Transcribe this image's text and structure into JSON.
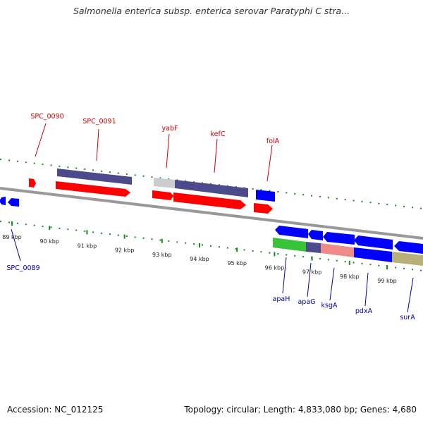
{
  "title": "Salmonella enterica subsp. enterica serovar Paratyphi C stra...",
  "footer": {
    "accession": "Accession: NC_012125",
    "info": "Topology: circular; Length: 4,833,080 bp; Genes: 4,680"
  },
  "ticks": [
    "89 kbp",
    "90 kbp",
    "91 kbp",
    "92 kbp",
    "93 kbp",
    "94 kbp",
    "95 kbp",
    "96 kbp",
    "97 kbp",
    "98 kbp",
    "99 kbp"
  ],
  "genes_top": [
    "SPC_0090",
    "SPC_0091",
    "yabF",
    "kefC",
    "folA"
  ],
  "genes_bottom": [
    "SPC_0089",
    "apaH",
    "apaG",
    "ksgA",
    "pdxA",
    "surA"
  ],
  "colors": {
    "forward_cds": "#ff0000",
    "reverse_cds": "#0000ff",
    "feature_purple": "#4d4a8c",
    "feature_gray": "#cccccc",
    "feature_green": "#39c339",
    "feature_pink": "#f08a8a",
    "feature_olive": "#b8b07a",
    "label_top": "#cc0000",
    "label_bottom": "#0000aa",
    "tick_green": "#1a8a1a",
    "backbone": "#888888"
  }
}
